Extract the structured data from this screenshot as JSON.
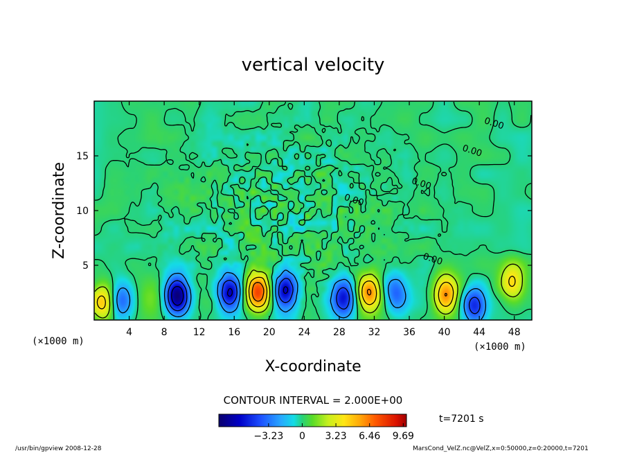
{
  "chart_data": {
    "type": "heatmap",
    "title": "vertical velocity",
    "xlabel": "X-coordinate",
    "ylabel": "Z-coordinate",
    "x_unit": "(×1000 m)",
    "y_unit": "(×1000 m)",
    "xlim": [
      0,
      50
    ],
    "ylim": [
      0,
      20
    ],
    "x_ticks": [
      4,
      8,
      12,
      16,
      20,
      24,
      28,
      32,
      36,
      40,
      44,
      48
    ],
    "y_ticks": [
      5,
      10,
      15
    ],
    "contour_interval_label": "CONTOUR INTERVAL = 2.000E+00",
    "contour_labels": [
      "0.00",
      "0.00",
      "0.00",
      "0.00",
      "0.00"
    ],
    "colorbar": {
      "range": [
        -8,
        10
      ],
      "ticks": [
        -3.23,
        0,
        3.23,
        6.46,
        9.69
      ],
      "tick_labels": [
        "−3.23",
        "0",
        "3.23",
        "6.46",
        "9.69"
      ]
    },
    "time_label": "t=7201  s",
    "updrafts": [
      {
        "x": 1.0,
        "z": 1.6,
        "w": 4.8
      },
      {
        "x": 6.5,
        "z": 1.9,
        "w": 1.2
      },
      {
        "x": 18.7,
        "z": 2.6,
        "w": 7.5
      },
      {
        "x": 31.4,
        "z": 2.5,
        "w": 6.5
      },
      {
        "x": 40.2,
        "z": 2.4,
        "w": 5.8
      },
      {
        "x": 47.8,
        "z": 3.5,
        "w": 4.2
      }
    ],
    "downdrafts": [
      {
        "x": 9.5,
        "z": 2.2,
        "w": -8.0
      },
      {
        "x": 15.5,
        "z": 2.5,
        "w": -6.5
      },
      {
        "x": 21.8,
        "z": 2.6,
        "w": -6.0
      },
      {
        "x": 28.5,
        "z": 2.0,
        "w": -6.0
      },
      {
        "x": 43.5,
        "z": 1.3,
        "w": -5.0
      },
      {
        "x": 3.2,
        "z": 1.8,
        "w": -3.5
      },
      {
        "x": 34.5,
        "z": 2.4,
        "w": -3.5
      }
    ]
  },
  "footer": {
    "left": "/usr/bin/gpview   2008-12-28",
    "right": "MarsCond_VelZ.nc@VelZ,x=0:50000,z=0:20000,t=7201"
  }
}
